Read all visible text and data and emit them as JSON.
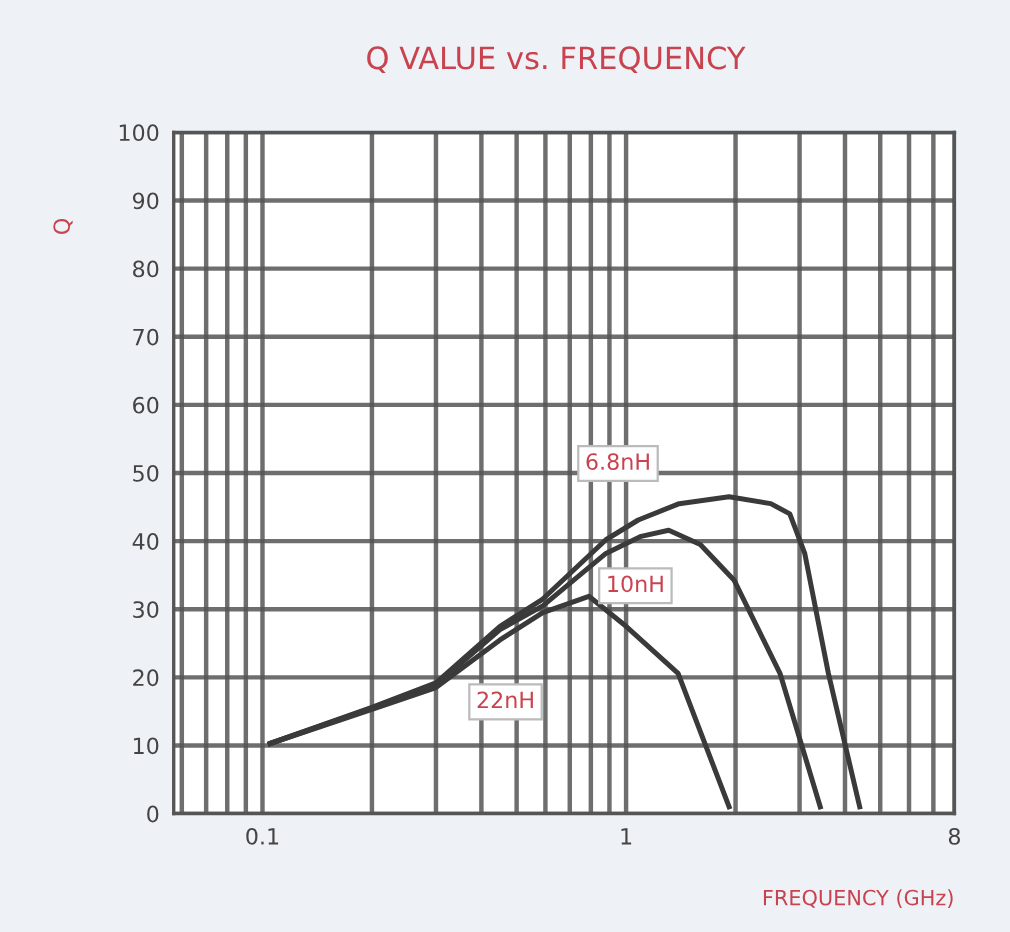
{
  "chart_data": {
    "type": "line",
    "title": "Q VALUE vs. FREQUENCY",
    "xlabel": "FREQUENCY (GHz)",
    "ylabel": "Q",
    "log": "x",
    "xlim": [
      0.057,
      8
    ],
    "ylim": [
      0,
      100
    ],
    "xticks": [
      {
        "value": 0.06,
        "label": null
      },
      {
        "value": 0.07,
        "label": null
      },
      {
        "value": 0.08,
        "label": null
      },
      {
        "value": 0.09,
        "label": null
      },
      0.1,
      {
        "value": 0.2,
        "label": null
      },
      {
        "value": 0.3,
        "label": null
      },
      {
        "value": 0.4,
        "label": null
      },
      {
        "value": 0.5,
        "label": null
      },
      {
        "value": 0.6,
        "label": null
      },
      {
        "value": 0.7,
        "label": null
      },
      {
        "value": 0.8,
        "label": null
      },
      {
        "value": 0.9,
        "label": null
      },
      1,
      {
        "value": 2,
        "label": null
      },
      {
        "value": 3,
        "label": null
      },
      {
        "value": 4,
        "label": null
      },
      {
        "value": 5,
        "label": null
      },
      {
        "value": 6,
        "label": null
      },
      {
        "value": 7,
        "label": null
      },
      8
    ],
    "yticks": [
      0,
      10,
      20,
      30,
      40,
      50,
      60,
      70,
      80,
      90,
      100
    ],
    "grid": true,
    "legend": false,
    "marker": "none",
    "line_style": "solid",
    "series": [
      {
        "name": "6.8nH",
        "color": "#3a3a3a",
        "x": [
          0.105,
          0.2,
          0.3,
          0.45,
          0.59,
          0.88,
          1.08,
          1.4,
          1.92,
          2.5,
          2.82,
          3.1,
          3.6,
          4.39
        ],
        "values": [
          10.3,
          15.6,
          19.2,
          27.5,
          31.5,
          40.2,
          43.1,
          45.5,
          46.5,
          45.5,
          44,
          38.2,
          20.6,
          1
        ]
      },
      {
        "name": "10nH",
        "color": "#3a3a3a",
        "x": [
          0.105,
          0.2,
          0.3,
          0.45,
          0.59,
          0.88,
          1.1,
          1.31,
          1.6,
          1.98,
          2.65,
          3.42
        ],
        "values": [
          10.3,
          15.5,
          18.9,
          27,
          30.5,
          38.2,
          40.7,
          41.6,
          39.5,
          34.3,
          20.6,
          1
        ]
      },
      {
        "name": "22nH",
        "color": "#3a3a3a",
        "x": [
          0.105,
          0.2,
          0.3,
          0.45,
          0.59,
          0.79,
          1.0,
          1.39,
          1.92
        ],
        "values": [
          10.3,
          15.3,
          18.5,
          25.5,
          29.5,
          31.9,
          27.5,
          20.6,
          1
        ]
      }
    ]
  }
}
